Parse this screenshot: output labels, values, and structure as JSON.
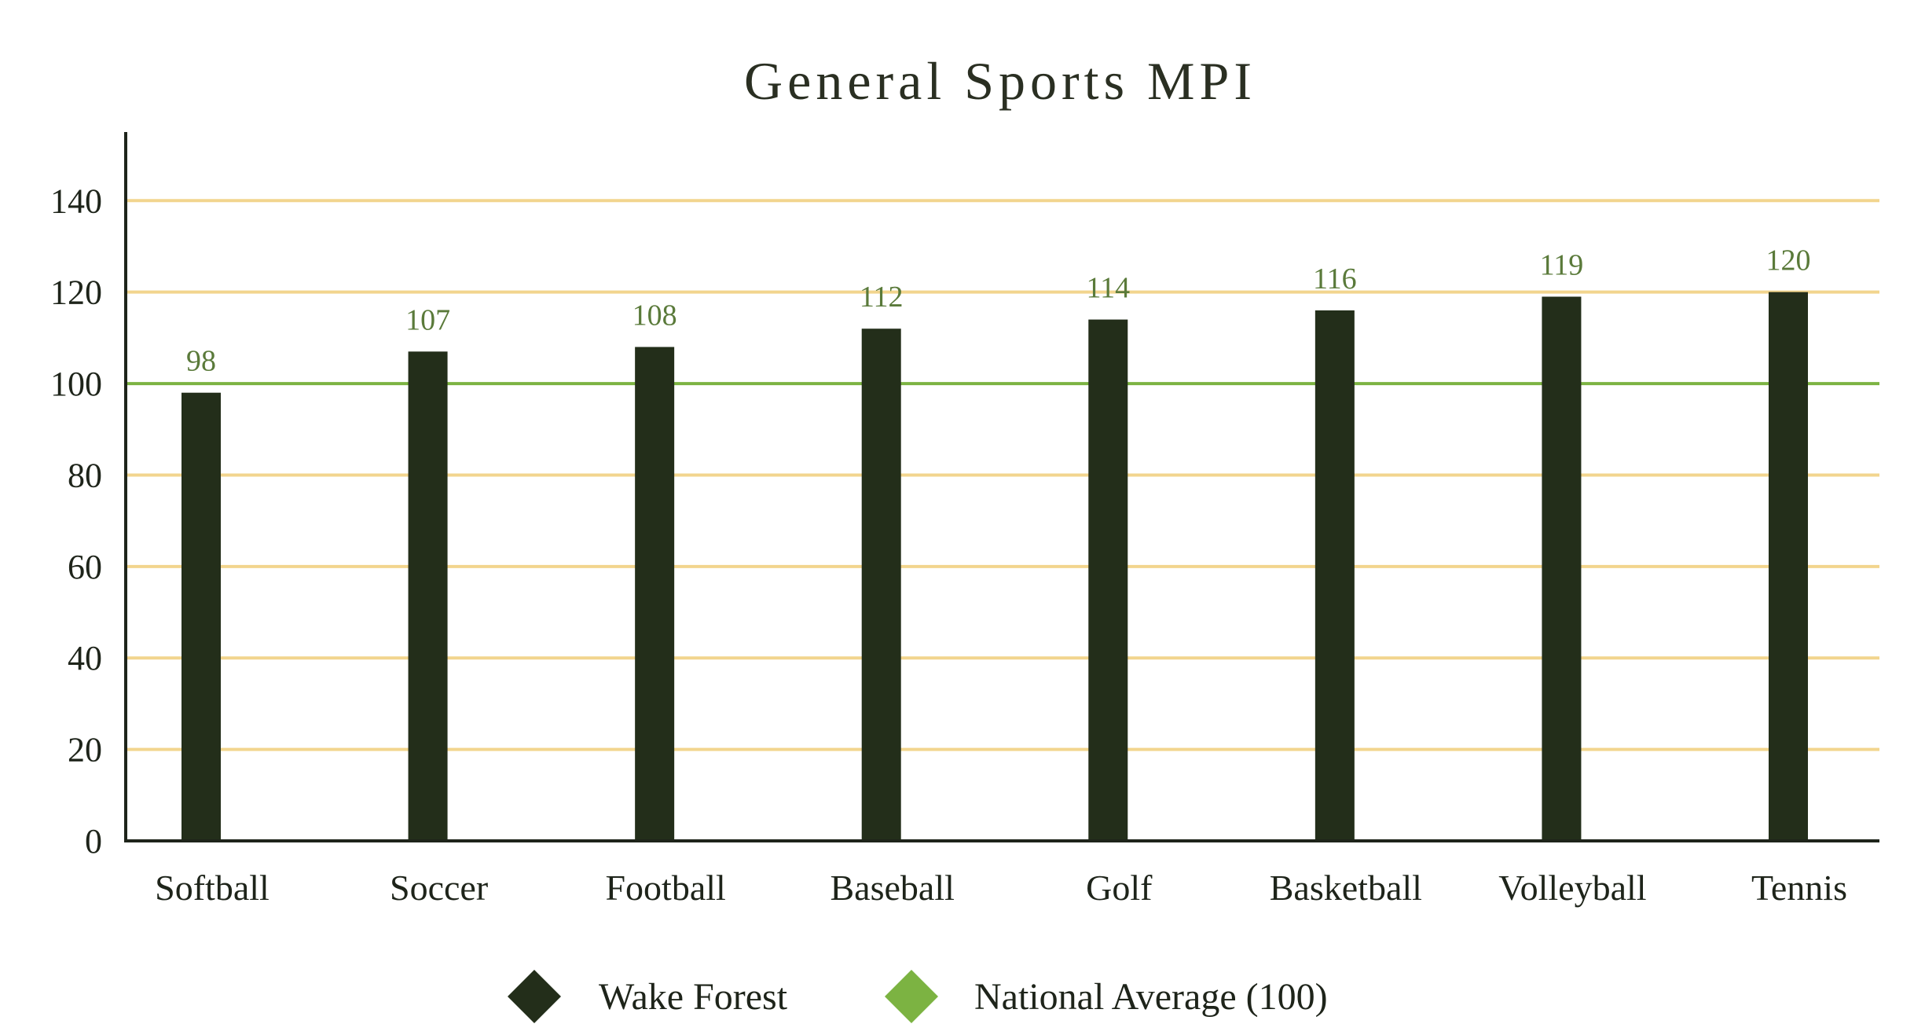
{
  "chart_data": {
    "type": "bar",
    "title": "General Sports MPI",
    "xlabel": "",
    "ylabel": "",
    "categories": [
      "Softball",
      "Soccer",
      "Football",
      "Baseball",
      "Golf",
      "Basketball",
      "Volleyball",
      "Tennis"
    ],
    "series": [
      {
        "name": "Wake Forest",
        "values": [
          98,
          107,
          108,
          112,
          114,
          116,
          119,
          120
        ],
        "color": "#232e1a"
      }
    ],
    "reference_line": {
      "name": "National Average (100)",
      "value": 100,
      "color": "#7cb342"
    },
    "ylim": [
      0,
      155
    ],
    "yticks": [
      0,
      20,
      40,
      60,
      80,
      100,
      120,
      140
    ],
    "grid": true,
    "grid_color": "#f2d58e",
    "axis_color": "#1e241a",
    "label_color": "#5a7a3a",
    "legend_position": "bottom-center",
    "legend": [
      {
        "name": "Wake Forest",
        "color": "#232e1a",
        "marker": "diamond"
      },
      {
        "name": "National Average (100)",
        "color": "#7cb342",
        "marker": "diamond"
      }
    ]
  }
}
